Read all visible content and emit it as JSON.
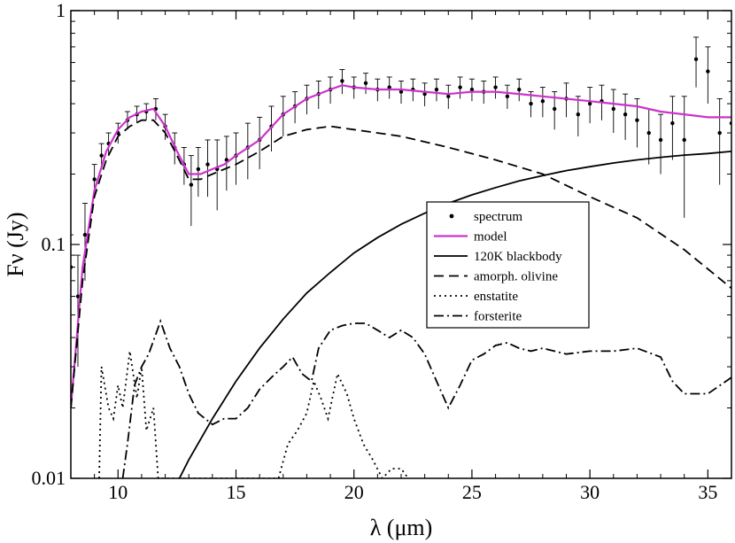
{
  "chart_data": {
    "type": "line",
    "title": "",
    "xlabel": "λ (μm)",
    "ylabel": "Fν (Jy)",
    "xscale": "linear",
    "yscale": "log",
    "xlim": [
      8,
      36
    ],
    "ylim": [
      0.01,
      1
    ],
    "x_ticks": [
      {
        "value": 10,
        "label": "10"
      },
      {
        "value": 15,
        "label": "15"
      },
      {
        "value": 20,
        "label": "20"
      },
      {
        "value": 25,
        "label": "25"
      },
      {
        "value": 30,
        "label": "30"
      },
      {
        "value": 35,
        "label": "35"
      }
    ],
    "y_ticks": [
      {
        "value": 0.01,
        "label": "0.01"
      },
      {
        "value": 0.1,
        "label": "0.1"
      },
      {
        "value": 1,
        "label": "1"
      }
    ],
    "legend_position": "center-right",
    "series": [
      {
        "name": "spectrum",
        "style": "points-with-errorbars",
        "color": "#000000",
        "points": [
          [
            8.0,
            0.08,
            0.03
          ],
          [
            8.3,
            0.06,
            0.03
          ],
          [
            8.6,
            0.11,
            0.04
          ],
          [
            9.0,
            0.19,
            0.03
          ],
          [
            9.3,
            0.24,
            0.03
          ],
          [
            9.6,
            0.27,
            0.03
          ],
          [
            10.0,
            0.3,
            0.03
          ],
          [
            10.4,
            0.34,
            0.03
          ],
          [
            10.8,
            0.36,
            0.03
          ],
          [
            11.2,
            0.37,
            0.03
          ],
          [
            11.6,
            0.38,
            0.04
          ],
          [
            12.0,
            0.32,
            0.04
          ],
          [
            12.4,
            0.26,
            0.04
          ],
          [
            12.8,
            0.22,
            0.04
          ],
          [
            13.1,
            0.18,
            0.06
          ],
          [
            13.4,
            0.21,
            0.05
          ],
          [
            13.8,
            0.22,
            0.06
          ],
          [
            14.2,
            0.21,
            0.07
          ],
          [
            14.6,
            0.23,
            0.06
          ],
          [
            15.0,
            0.24,
            0.06
          ],
          [
            15.5,
            0.26,
            0.07
          ],
          [
            16.0,
            0.28,
            0.07
          ],
          [
            16.5,
            0.32,
            0.07
          ],
          [
            17.0,
            0.36,
            0.07
          ],
          [
            17.5,
            0.39,
            0.06
          ],
          [
            18.0,
            0.42,
            0.06
          ],
          [
            18.5,
            0.44,
            0.06
          ],
          [
            19.0,
            0.46,
            0.06
          ],
          [
            19.5,
            0.5,
            0.06
          ],
          [
            20.0,
            0.47,
            0.05
          ],
          [
            20.5,
            0.49,
            0.05
          ],
          [
            21.0,
            0.46,
            0.05
          ],
          [
            21.5,
            0.47,
            0.05
          ],
          [
            22.0,
            0.45,
            0.05
          ],
          [
            22.5,
            0.46,
            0.05
          ],
          [
            23.0,
            0.44,
            0.05
          ],
          [
            23.5,
            0.46,
            0.05
          ],
          [
            24.0,
            0.43,
            0.05
          ],
          [
            24.5,
            0.47,
            0.05
          ],
          [
            25.0,
            0.46,
            0.05
          ],
          [
            25.5,
            0.45,
            0.05
          ],
          [
            26.0,
            0.47,
            0.05
          ],
          [
            26.5,
            0.43,
            0.05
          ],
          [
            27.0,
            0.46,
            0.05
          ],
          [
            27.5,
            0.4,
            0.05
          ],
          [
            28.0,
            0.41,
            0.06
          ],
          [
            28.5,
            0.38,
            0.07
          ],
          [
            29.0,
            0.42,
            0.07
          ],
          [
            29.5,
            0.36,
            0.07
          ],
          [
            30.0,
            0.4,
            0.07
          ],
          [
            30.5,
            0.41,
            0.07
          ],
          [
            31.0,
            0.38,
            0.08
          ],
          [
            31.5,
            0.36,
            0.08
          ],
          [
            32.0,
            0.34,
            0.08
          ],
          [
            32.5,
            0.3,
            0.08
          ],
          [
            33.0,
            0.28,
            0.08
          ],
          [
            33.5,
            0.33,
            0.1
          ],
          [
            34.0,
            0.28,
            0.15
          ],
          [
            34.5,
            0.62,
            0.15
          ],
          [
            35.0,
            0.55,
            0.15
          ],
          [
            35.5,
            0.3,
            0.12
          ],
          [
            36.0,
            0.33,
            0.12
          ]
        ]
      },
      {
        "name": "model",
        "style": "solid",
        "color": "#cc33cc",
        "points": [
          [
            8.0,
            0.02
          ],
          [
            8.5,
            0.08
          ],
          [
            9.0,
            0.17
          ],
          [
            9.5,
            0.25
          ],
          [
            10.0,
            0.31
          ],
          [
            10.5,
            0.35
          ],
          [
            11.0,
            0.37
          ],
          [
            11.5,
            0.38
          ],
          [
            12.0,
            0.32
          ],
          [
            12.5,
            0.25
          ],
          [
            13.0,
            0.2
          ],
          [
            13.5,
            0.2
          ],
          [
            14.0,
            0.21
          ],
          [
            14.5,
            0.22
          ],
          [
            15.0,
            0.24
          ],
          [
            16.0,
            0.28
          ],
          [
            17.0,
            0.36
          ],
          [
            18.0,
            0.42
          ],
          [
            19.0,
            0.46
          ],
          [
            19.5,
            0.48
          ],
          [
            20.0,
            0.47
          ],
          [
            21.0,
            0.46
          ],
          [
            22.0,
            0.46
          ],
          [
            23.0,
            0.45
          ],
          [
            24.0,
            0.44
          ],
          [
            25.0,
            0.45
          ],
          [
            26.0,
            0.45
          ],
          [
            27.0,
            0.44
          ],
          [
            28.0,
            0.43
          ],
          [
            29.0,
            0.42
          ],
          [
            30.0,
            0.41
          ],
          [
            31.0,
            0.4
          ],
          [
            32.0,
            0.39
          ],
          [
            33.0,
            0.37
          ],
          [
            34.0,
            0.36
          ],
          [
            35.0,
            0.35
          ],
          [
            36.0,
            0.35
          ]
        ]
      },
      {
        "name": "120K blackbody",
        "style": "solid",
        "color": "#000000",
        "points": [
          [
            12.6,
            0.01
          ],
          [
            13.0,
            0.012
          ],
          [
            14.0,
            0.018
          ],
          [
            15.0,
            0.026
          ],
          [
            16.0,
            0.036
          ],
          [
            17.0,
            0.048
          ],
          [
            18.0,
            0.062
          ],
          [
            19.0,
            0.076
          ],
          [
            20.0,
            0.092
          ],
          [
            21.0,
            0.107
          ],
          [
            22.0,
            0.122
          ],
          [
            23.0,
            0.136
          ],
          [
            24.0,
            0.15
          ],
          [
            25.0,
            0.163
          ],
          [
            26.0,
            0.175
          ],
          [
            27.0,
            0.187
          ],
          [
            28.0,
            0.197
          ],
          [
            29.0,
            0.207
          ],
          [
            30.0,
            0.215
          ],
          [
            31.0,
            0.223
          ],
          [
            32.0,
            0.23
          ],
          [
            33.0,
            0.236
          ],
          [
            34.0,
            0.241
          ],
          [
            35.0,
            0.245
          ],
          [
            36.0,
            0.25
          ]
        ]
      },
      {
        "name": "amorph. olivine",
        "style": "dashed",
        "color": "#000000",
        "points": [
          [
            8.0,
            0.02
          ],
          [
            8.5,
            0.07
          ],
          [
            9.0,
            0.16
          ],
          [
            9.5,
            0.23
          ],
          [
            10.0,
            0.29
          ],
          [
            10.5,
            0.32
          ],
          [
            11.0,
            0.34
          ],
          [
            11.5,
            0.34
          ],
          [
            12.0,
            0.3
          ],
          [
            12.5,
            0.24
          ],
          [
            13.0,
            0.19
          ],
          [
            13.5,
            0.19
          ],
          [
            14.0,
            0.2
          ],
          [
            15.0,
            0.22
          ],
          [
            16.0,
            0.25
          ],
          [
            17.0,
            0.29
          ],
          [
            18.0,
            0.31
          ],
          [
            19.0,
            0.32
          ],
          [
            20.0,
            0.31
          ],
          [
            22.0,
            0.29
          ],
          [
            24.0,
            0.26
          ],
          [
            26.0,
            0.23
          ],
          [
            28.0,
            0.2
          ],
          [
            30.0,
            0.16
          ],
          [
            32.0,
            0.13
          ],
          [
            34.0,
            0.095
          ],
          [
            36.0,
            0.065
          ]
        ]
      },
      {
        "name": "enstatite",
        "style": "dotted",
        "color": "#000000",
        "points": [
          [
            9.2,
            0.01
          ],
          [
            9.3,
            0.03
          ],
          [
            9.6,
            0.02
          ],
          [
            9.8,
            0.018
          ],
          [
            10.0,
            0.025
          ],
          [
            10.2,
            0.02
          ],
          [
            10.5,
            0.035
          ],
          [
            10.8,
            0.022
          ],
          [
            11.0,
            0.03
          ],
          [
            11.2,
            0.016
          ],
          [
            11.5,
            0.02
          ],
          [
            11.7,
            0.01
          ],
          [
            16.8,
            0.01
          ],
          [
            17.2,
            0.014
          ],
          [
            17.6,
            0.016
          ],
          [
            18.0,
            0.019
          ],
          [
            18.3,
            0.026
          ],
          [
            18.6,
            0.022
          ],
          [
            18.9,
            0.018
          ],
          [
            19.3,
            0.028
          ],
          [
            19.7,
            0.023
          ],
          [
            20.0,
            0.018
          ],
          [
            20.4,
            0.014
          ],
          [
            20.8,
            0.012
          ],
          [
            21.2,
            0.01
          ],
          [
            21.6,
            0.011
          ],
          [
            22.0,
            0.011
          ],
          [
            22.3,
            0.01
          ]
        ]
      },
      {
        "name": "forsterite",
        "style": "dash-dot",
        "color": "#000000",
        "points": [
          [
            10.2,
            0.01
          ],
          [
            10.4,
            0.014
          ],
          [
            10.7,
            0.025
          ],
          [
            11.0,
            0.03
          ],
          [
            11.3,
            0.034
          ],
          [
            11.8,
            0.047
          ],
          [
            12.2,
            0.036
          ],
          [
            12.6,
            0.03
          ],
          [
            13.0,
            0.023
          ],
          [
            13.4,
            0.019
          ],
          [
            14.0,
            0.017
          ],
          [
            14.5,
            0.018
          ],
          [
            15.0,
            0.018
          ],
          [
            15.5,
            0.02
          ],
          [
            16.0,
            0.024
          ],
          [
            16.5,
            0.027
          ],
          [
            17.0,
            0.03
          ],
          [
            17.4,
            0.033
          ],
          [
            17.8,
            0.028
          ],
          [
            18.2,
            0.026
          ],
          [
            18.5,
            0.036
          ],
          [
            19.0,
            0.043
          ],
          [
            19.5,
            0.045
          ],
          [
            20.0,
            0.046
          ],
          [
            20.5,
            0.046
          ],
          [
            21.0,
            0.043
          ],
          [
            21.5,
            0.04
          ],
          [
            22.0,
            0.043
          ],
          [
            22.5,
            0.04
          ],
          [
            23.0,
            0.034
          ],
          [
            23.5,
            0.026
          ],
          [
            24.0,
            0.02
          ],
          [
            24.5,
            0.025
          ],
          [
            25.0,
            0.032
          ],
          [
            25.5,
            0.034
          ],
          [
            26.0,
            0.037
          ],
          [
            26.5,
            0.038
          ],
          [
            27.0,
            0.036
          ],
          [
            27.5,
            0.035
          ],
          [
            28.0,
            0.036
          ],
          [
            29.0,
            0.034
          ],
          [
            30.0,
            0.035
          ],
          [
            31.0,
            0.035
          ],
          [
            32.0,
            0.036
          ],
          [
            33.0,
            0.033
          ],
          [
            33.5,
            0.026
          ],
          [
            34.0,
            0.023
          ],
          [
            35.0,
            0.023
          ],
          [
            36.0,
            0.027
          ]
        ]
      }
    ]
  }
}
